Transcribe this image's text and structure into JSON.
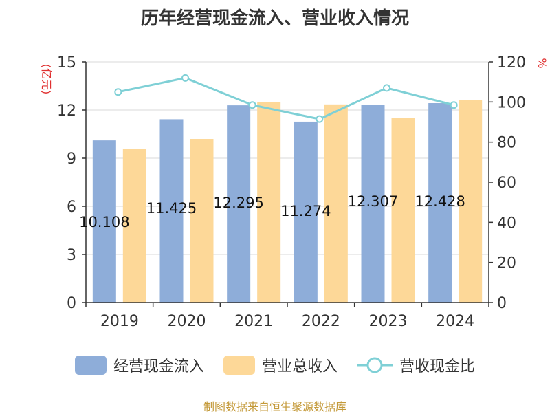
{
  "chart_data": {
    "type": "bar",
    "title": "历年经营现金流入、营业收入情况",
    "categories": [
      "2019",
      "2020",
      "2021",
      "2022",
      "2023",
      "2024"
    ],
    "series": [
      {
        "name": "经营现金流入",
        "values": [
          10.108,
          11.425,
          12.295,
          11.274,
          12.307,
          12.428
        ],
        "color": "#8eadd9",
        "axis": "left"
      },
      {
        "name": "营业总收入",
        "values": [
          9.6,
          10.2,
          12.5,
          12.35,
          11.5,
          12.6
        ],
        "color": "#fdd898",
        "axis": "left"
      },
      {
        "name": "营收现金比",
        "type": "line",
        "values": [
          105,
          112,
          98.5,
          91.5,
          107,
          98.5
        ],
        "color": "#7fd0d6",
        "axis": "right"
      }
    ],
    "data_labels": [
      "10.108",
      "11.425",
      "12.295",
      "11.274",
      "12.307",
      "12.428"
    ],
    "ylabel_left": "(亿元)",
    "ylabel_right": "%",
    "ylim_left": [
      0,
      15
    ],
    "ylim_right": [
      0,
      120
    ],
    "yticks_left": [
      "0",
      "3",
      "6",
      "9",
      "12",
      "15"
    ],
    "yticks_right": [
      "0",
      "20",
      "40",
      "60",
      "80",
      "100",
      "120"
    ],
    "grid": true,
    "legend_position": "bottom"
  },
  "source": "制图数据来自恒生聚源数据库",
  "colors": {
    "label_red": "#e03030",
    "axis": "#333333",
    "grid": "#d9d9d9"
  }
}
